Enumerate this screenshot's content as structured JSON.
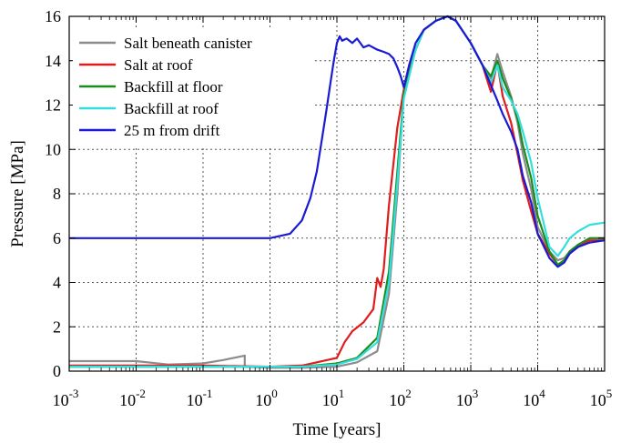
{
  "chart_data": {
    "type": "line",
    "title": "",
    "xlabel": "Time [years]",
    "ylabel": "Pressure [MPa]",
    "xscale": "log",
    "xlim": [
      0.001,
      100000
    ],
    "ylim": [
      0,
      16
    ],
    "grid": true,
    "legend_position": "top-left",
    "x_ticks": [
      {
        "value": 0.001,
        "base": "10",
        "exp": "-3"
      },
      {
        "value": 0.01,
        "base": "10",
        "exp": "-2"
      },
      {
        "value": 0.1,
        "base": "10",
        "exp": "-1"
      },
      {
        "value": 1,
        "base": "10",
        "exp": "0"
      },
      {
        "value": 10,
        "base": "10",
        "exp": "1"
      },
      {
        "value": 100,
        "base": "10",
        "exp": "2"
      },
      {
        "value": 1000,
        "base": "10",
        "exp": "3"
      },
      {
        "value": 10000,
        "base": "10",
        "exp": "4"
      },
      {
        "value": 100000,
        "base": "10",
        "exp": "5"
      }
    ],
    "y_ticks": [
      0,
      2,
      4,
      6,
      8,
      10,
      12,
      14,
      16
    ],
    "series": [
      {
        "name": "Salt beneath canister",
        "color": "#8c8c8c",
        "x": [
          0.001,
          0.003,
          0.01,
          0.03,
          0.1,
          0.2,
          0.42,
          0.42,
          1,
          3,
          10,
          20,
          40,
          60,
          80,
          100,
          150,
          200,
          300,
          450,
          600,
          1000,
          1500,
          2000,
          2500,
          3000,
          4000,
          5000,
          6000,
          8000,
          10000,
          15000,
          20000,
          25000,
          30000,
          40000,
          60000,
          100000
        ],
        "y": [
          0.45,
          0.45,
          0.45,
          0.3,
          0.35,
          0.5,
          0.7,
          0.2,
          0.15,
          0.15,
          0.2,
          0.4,
          0.9,
          3.5,
          8,
          12.5,
          14.5,
          15.4,
          15.8,
          16,
          15.8,
          14.8,
          13.8,
          13.2,
          14.3,
          13.5,
          12.4,
          11.2,
          9.8,
          8.2,
          6.5,
          5.4,
          5,
          5.1,
          5.4,
          5.7,
          6,
          6
        ]
      },
      {
        "name": "Salt at roof",
        "color": "#e01c1c",
        "x": [
          0.001,
          0.01,
          0.1,
          1,
          3,
          10,
          13,
          17,
          25,
          35,
          40,
          45,
          50,
          60,
          80,
          100,
          150,
          200,
          300,
          450,
          600,
          1000,
          1500,
          2000,
          2500,
          3000,
          4000,
          5000,
          6000,
          8000,
          10000,
          15000,
          20000,
          25000,
          30000,
          40000,
          60000,
          100000
        ],
        "y": [
          0.25,
          0.25,
          0.25,
          0.2,
          0.25,
          0.6,
          1.3,
          1.8,
          2.2,
          2.8,
          4.2,
          3.8,
          4.6,
          7.5,
          11,
          12.7,
          14.5,
          15.4,
          15.8,
          16,
          15.8,
          14.8,
          13.8,
          12.6,
          13.9,
          12.4,
          11.2,
          9.8,
          8.6,
          7.2,
          6.2,
          5.3,
          4.8,
          5,
          5.3,
          5.6,
          5.9,
          5.9
        ]
      },
      {
        "name": "Backfill at floor",
        "color": "#1a8c1a",
        "x": [
          0.001,
          0.01,
          0.1,
          1,
          3,
          10,
          20,
          40,
          60,
          80,
          100,
          150,
          200,
          300,
          450,
          600,
          1000,
          1500,
          2000,
          2500,
          3000,
          4000,
          5000,
          6000,
          8000,
          10000,
          15000,
          20000,
          25000,
          30000,
          40000,
          60000,
          100000
        ],
        "y": [
          0.2,
          0.2,
          0.2,
          0.2,
          0.2,
          0.35,
          0.6,
          1.5,
          4.5,
          9,
          12.5,
          14.5,
          15.4,
          15.8,
          16,
          15.8,
          14.8,
          13.8,
          13.3,
          14,
          13.2,
          12.3,
          11.4,
          10.2,
          8.7,
          7,
          5.4,
          4.8,
          5,
          5.4,
          5.7,
          6,
          6
        ]
      },
      {
        "name": "Backfill at roof",
        "color": "#33dede",
        "x": [
          0.001,
          0.01,
          0.1,
          1,
          3,
          10,
          20,
          40,
          60,
          80,
          100,
          150,
          200,
          300,
          450,
          600,
          1000,
          1500,
          2000,
          2500,
          3000,
          4000,
          5000,
          6000,
          8000,
          10000,
          15000,
          20000,
          25000,
          30000,
          40000,
          60000,
          100000
        ],
        "y": [
          0.2,
          0.2,
          0.2,
          0.2,
          0.2,
          0.3,
          0.55,
          1.3,
          4,
          8.5,
          12.3,
          14.5,
          15.4,
          15.8,
          16,
          15.8,
          14.8,
          13.8,
          13,
          13.8,
          12.8,
          12.2,
          11.6,
          10.8,
          9.4,
          7.8,
          5.6,
          5.2,
          5.6,
          6,
          6.3,
          6.6,
          6.7
        ]
      },
      {
        "name": "25 m from drift",
        "color": "#1a1ad4",
        "x": [
          0.001,
          0.01,
          0.1,
          0.5,
          1,
          2,
          3,
          4,
          5,
          6,
          7,
          8,
          9,
          10,
          11,
          12,
          14,
          17,
          20,
          25,
          30,
          40,
          50,
          60,
          70,
          80,
          90,
          100,
          120,
          150,
          200,
          300,
          450,
          600,
          1000,
          1500,
          2000,
          2500,
          3000,
          4000,
          5000,
          6000,
          8000,
          10000,
          15000,
          20000,
          25000,
          30000,
          40000,
          60000,
          100000
        ],
        "y": [
          6,
          6,
          6,
          6,
          6,
          6.2,
          6.8,
          7.8,
          9,
          10.5,
          11.8,
          13,
          14,
          14.8,
          15.1,
          14.9,
          15,
          14.8,
          15,
          14.6,
          14.7,
          14.5,
          14.4,
          14.3,
          14.1,
          13.7,
          13.3,
          12.8,
          13.8,
          14.8,
          15.4,
          15.8,
          16,
          15.8,
          14.8,
          13.8,
          12.9,
          12.2,
          11.6,
          10.8,
          10,
          8.8,
          7.6,
          6.2,
          5.1,
          4.7,
          4.9,
          5.3,
          5.6,
          5.8,
          5.9
        ]
      }
    ]
  }
}
